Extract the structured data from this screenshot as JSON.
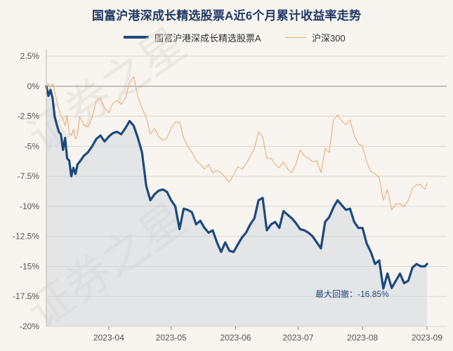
{
  "chart_data": {
    "type": "line",
    "title": "国富沪港深成长精选股票A近6个月累计收益率走势",
    "xlabel": "",
    "ylabel": "",
    "ylim": [
      -20,
      2.5
    ],
    "xlim": [
      "2023-03-02",
      "2023-09-01"
    ],
    "y_ticks": [
      2.5,
      0,
      -2.5,
      -5,
      -7.5,
      -10,
      -12.5,
      -15,
      -17.5,
      -20
    ],
    "y_tick_labels": [
      "2.5%",
      "0%",
      "-2.5%",
      "-5%",
      "-7.5%",
      "-10%",
      "-12.5%",
      "-15%",
      "-17.5%",
      "-20%"
    ],
    "x_ticks": [
      "2023-04-01",
      "2023-05-01",
      "2023-06-01",
      "2023-07-01",
      "2023-08-01",
      "2023-09-01"
    ],
    "x_tick_labels": [
      "2023-04",
      "2023-05",
      "2023-06",
      "2023-07",
      "2023-08",
      "2023-09"
    ],
    "legend_position": "top",
    "grid": "horizontal",
    "series": [
      {
        "name": "国富沪港深成长精选股票A",
        "color": "#1c4a7e",
        "area_fill": true,
        "x": [
          "2023-03-02",
          "2023-03-03",
          "2023-03-04",
          "2023-03-05",
          "2023-03-06",
          "2023-03-07",
          "2023-03-08",
          "2023-03-09",
          "2023-03-10",
          "2023-03-11",
          "2023-03-12",
          "2023-03-13",
          "2023-03-14",
          "2023-03-15",
          "2023-03-16",
          "2023-03-17",
          "2023-03-18",
          "2023-03-20",
          "2023-03-22",
          "2023-03-24",
          "2023-03-26",
          "2023-03-28",
          "2023-03-30",
          "2023-04-01",
          "2023-04-03",
          "2023-04-05",
          "2023-04-07",
          "2023-04-09",
          "2023-04-11",
          "2023-04-13",
          "2023-04-15",
          "2023-04-17",
          "2023-04-19",
          "2023-04-21",
          "2023-04-23",
          "2023-04-25",
          "2023-04-27",
          "2023-04-29",
          "2023-05-01",
          "2023-05-03",
          "2023-05-05",
          "2023-05-07",
          "2023-05-09",
          "2023-05-11",
          "2023-05-13",
          "2023-05-15",
          "2023-05-17",
          "2023-05-19",
          "2023-05-21",
          "2023-05-23",
          "2023-05-25",
          "2023-05-27",
          "2023-05-29",
          "2023-05-31",
          "2023-06-02",
          "2023-06-04",
          "2023-06-06",
          "2023-06-08",
          "2023-06-10",
          "2023-06-12",
          "2023-06-14",
          "2023-06-16",
          "2023-06-18",
          "2023-06-20",
          "2023-06-22",
          "2023-06-24",
          "2023-06-26",
          "2023-06-28",
          "2023-06-30",
          "2023-07-02",
          "2023-07-04",
          "2023-07-06",
          "2023-07-08",
          "2023-07-10",
          "2023-07-12",
          "2023-07-14",
          "2023-07-16",
          "2023-07-18",
          "2023-07-20",
          "2023-07-22",
          "2023-07-24",
          "2023-07-26",
          "2023-07-28",
          "2023-07-30",
          "2023-08-01",
          "2023-08-03",
          "2023-08-05",
          "2023-08-07",
          "2023-08-09",
          "2023-08-11",
          "2023-08-13",
          "2023-08-15",
          "2023-08-17",
          "2023-08-19",
          "2023-08-21",
          "2023-08-23",
          "2023-08-25",
          "2023-08-27",
          "2023-08-29",
          "2023-08-31",
          "2023-09-01"
        ],
        "values": [
          0,
          -0.8,
          -0.3,
          -1,
          -2.5,
          -3.2,
          -3.8,
          -4,
          -5.3,
          -4.3,
          -6,
          -6.2,
          -7.5,
          -6.8,
          -7.3,
          -6.5,
          -6.3,
          -5.8,
          -5.5,
          -5,
          -4.4,
          -4.1,
          -4.6,
          -4.2,
          -3.9,
          -3.8,
          -4,
          -3.5,
          -2.9,
          -3.3,
          -4.3,
          -5.5,
          -8.3,
          -9.5,
          -9,
          -8.7,
          -8.6,
          -8.8,
          -9.5,
          -10,
          -11.9,
          -10.2,
          -10.3,
          -10.5,
          -11.5,
          -11.2,
          -11.8,
          -12.2,
          -12,
          -13,
          -13.8,
          -13,
          -13.7,
          -13.8,
          -13.2,
          -12.6,
          -12.2,
          -11.5,
          -11,
          -9.5,
          -9.3,
          -12,
          -11.5,
          -11.3,
          -11.8,
          -10.4,
          -10.7,
          -11,
          -11.4,
          -11.9,
          -12,
          -12.2,
          -12.5,
          -13,
          -13.5,
          -11.3,
          -10.9,
          -10.1,
          -9.5,
          -9.9,
          -10.3,
          -10.2,
          -11.3,
          -11.8,
          -11.8,
          -13.1,
          -13.8,
          -14.8,
          -14.5,
          -16.85,
          -15.6,
          -16.8,
          -16.2,
          -15.6,
          -16.4,
          -16.2,
          -15.1,
          -14.8,
          -15,
          -15,
          -14.8
        ]
      },
      {
        "name": "沪深300",
        "color": "#e8b07a",
        "area_fill": false,
        "x": [
          "2023-03-02",
          "2023-03-03",
          "2023-03-04",
          "2023-03-05",
          "2023-03-06",
          "2023-03-07",
          "2023-03-08",
          "2023-03-09",
          "2023-03-10",
          "2023-03-11",
          "2023-03-12",
          "2023-03-13",
          "2023-03-14",
          "2023-03-15",
          "2023-03-16",
          "2023-03-17",
          "2023-03-18",
          "2023-03-20",
          "2023-03-22",
          "2023-03-24",
          "2023-03-26",
          "2023-03-28",
          "2023-03-30",
          "2023-04-01",
          "2023-04-03",
          "2023-04-05",
          "2023-04-07",
          "2023-04-09",
          "2023-04-11",
          "2023-04-13",
          "2023-04-15",
          "2023-04-17",
          "2023-04-19",
          "2023-04-21",
          "2023-04-23",
          "2023-04-25",
          "2023-04-27",
          "2023-04-29",
          "2023-05-01",
          "2023-05-03",
          "2023-05-05",
          "2023-05-07",
          "2023-05-09",
          "2023-05-11",
          "2023-05-13",
          "2023-05-15",
          "2023-05-17",
          "2023-05-19",
          "2023-05-21",
          "2023-05-23",
          "2023-05-25",
          "2023-05-27",
          "2023-05-29",
          "2023-05-31",
          "2023-06-02",
          "2023-06-04",
          "2023-06-06",
          "2023-06-08",
          "2023-06-10",
          "2023-06-12",
          "2023-06-14",
          "2023-06-16",
          "2023-06-18",
          "2023-06-20",
          "2023-06-22",
          "2023-06-24",
          "2023-06-26",
          "2023-06-28",
          "2023-06-30",
          "2023-07-02",
          "2023-07-04",
          "2023-07-06",
          "2023-07-08",
          "2023-07-10",
          "2023-07-12",
          "2023-07-14",
          "2023-07-16",
          "2023-07-18",
          "2023-07-20",
          "2023-07-22",
          "2023-07-24",
          "2023-07-26",
          "2023-07-28",
          "2023-07-30",
          "2023-08-01",
          "2023-08-03",
          "2023-08-05",
          "2023-08-07",
          "2023-08-09",
          "2023-08-11",
          "2023-08-13",
          "2023-08-15",
          "2023-08-17",
          "2023-08-19",
          "2023-08-21",
          "2023-08-23",
          "2023-08-25",
          "2023-08-27",
          "2023-08-29",
          "2023-08-31",
          "2023-09-01"
        ],
        "values": [
          0,
          0.2,
          -0.1,
          0.2,
          -0.4,
          -1.2,
          -2,
          -2.4,
          -2.7,
          -3.3,
          -2.4,
          -4,
          -4.1,
          -3.6,
          -4.4,
          -4,
          -2.5,
          -3.2,
          -3.4,
          -2.6,
          -1.2,
          -1,
          -1.8,
          -2.2,
          -1.4,
          -1.2,
          -1.5,
          -1,
          0.3,
          0.8,
          -0.9,
          -1.8,
          -2.6,
          -4,
          -3.5,
          -4.2,
          -4.5,
          -4.3,
          -3.5,
          -3,
          -3,
          -4.3,
          -5,
          -5.5,
          -6.2,
          -6.5,
          -6.9,
          -6.5,
          -7.2,
          -7,
          -7.2,
          -7.6,
          -8,
          -7.4,
          -6.7,
          -6.9,
          -6.5,
          -5.8,
          -5.2,
          -3.8,
          -4.2,
          -6,
          -6,
          -6.5,
          -6.8,
          -6.3,
          -6.9,
          -7.2,
          -6.5,
          -5.3,
          -5.8,
          -6,
          -6.3,
          -6.2,
          -7.2,
          -5.2,
          -5.5,
          -2.8,
          -2.4,
          -2.9,
          -3.2,
          -2.8,
          -4.1,
          -4.8,
          -5,
          -6.3,
          -7.1,
          -7.3,
          -7.6,
          -9.5,
          -8.6,
          -10.3,
          -9.8,
          -9.8,
          -10,
          -9.5,
          -8.5,
          -8.2,
          -8.2,
          -8.6,
          -8.1
        ]
      }
    ],
    "annotations": [
      {
        "text": "最大回撤：-16.85%",
        "x": "2023-08-13",
        "y": -16.85
      }
    ]
  },
  "watermark_text": [
    "证券之星",
    "证券之星"
  ]
}
